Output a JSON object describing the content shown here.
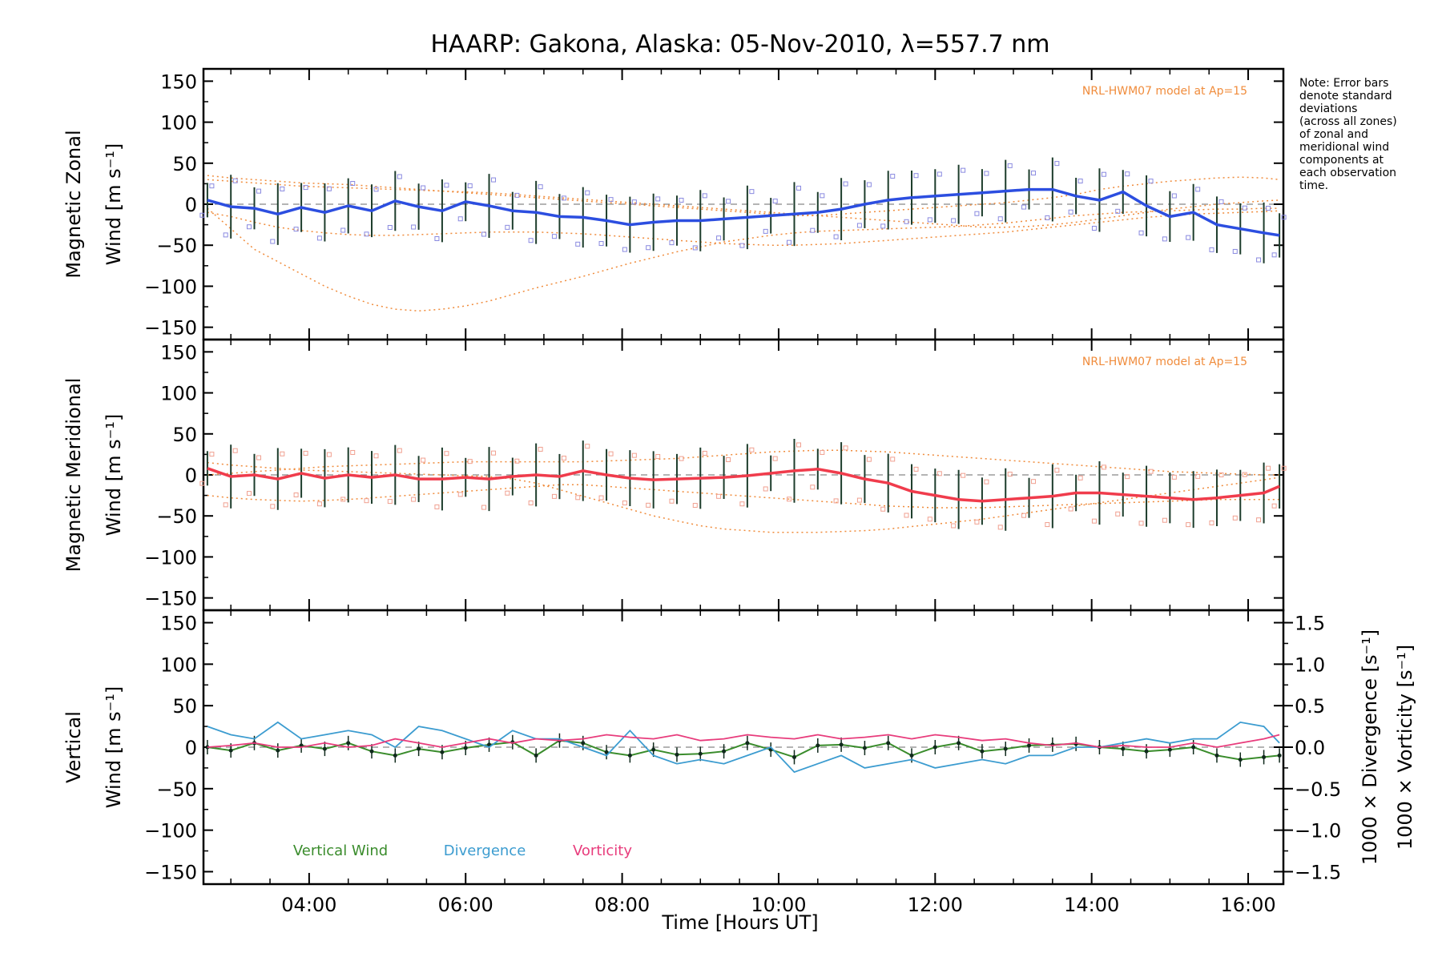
{
  "title": "HAARP: Gakona,  Alaska: 05-Nov-2010, λ=557.7 nm",
  "note": [
    "Note: Error bars",
    "denote standard",
    "deviations",
    "(across all zones)",
    "of zonal and",
    "meridional wind",
    "components at",
    "each observation",
    "time."
  ],
  "x_axis": {
    "label": "Time [Hours UT]",
    "ticks": [
      "04:00",
      "06:00",
      "08:00",
      "10:00",
      "12:00",
      "14:00",
      "16:00"
    ]
  },
  "y_ticks": [
    "150",
    "100",
    "50",
    "0",
    "−50",
    "−100",
    "−150"
  ],
  "right_ticks": [
    "1.5",
    "1.0",
    "0.5",
    "0.0",
    "−0.5",
    "−1.0",
    "−1.5"
  ],
  "panels": [
    {
      "ylabel_line1": "Magnetic Zonal",
      "ylabel_line2": "Wind [m s⁻¹]",
      "model_label": "NRL-HWM07 model at Ap=15"
    },
    {
      "ylabel_line1": "Magnetic Meridional",
      "ylabel_line2": "Wind [m s⁻¹]",
      "model_label": "NRL-HWM07 model at Ap=15"
    },
    {
      "ylabel_line1": "Vertical",
      "ylabel_line2": "Wind [m s⁻¹]",
      "right_label_1": "1000 × Divergence [s⁻¹]",
      "right_label_2": "1000 × Vorticity [s⁻¹]"
    }
  ],
  "legend": [
    "Vertical Wind",
    "Divergence",
    "Vorticity"
  ],
  "colors": {
    "zonal": "#2c4ee0",
    "meridional": "#f03c4c",
    "vertical": "#3a8c2c",
    "divergence": "#3c9cd0",
    "vorticity": "#e83c7c",
    "model": "#f08c3c",
    "axis": "#000000"
  },
  "chart_data": [
    {
      "type": "line",
      "title": "HAARP: Gakona,  Alaska: 05-Nov-2010, λ=557.7 nm",
      "xlabel": "Time [Hours UT]",
      "ylabel": "Magnetic Zonal Wind [m s⁻¹]",
      "xlim": [
        2.65,
        16.45
      ],
      "ylim": [
        -165,
        165
      ],
      "x": [
        2.7,
        3.0,
        3.3,
        3.6,
        3.9,
        4.2,
        4.5,
        4.8,
        5.1,
        5.4,
        5.7,
        6.0,
        6.3,
        6.6,
        6.9,
        7.2,
        7.5,
        7.8,
        8.1,
        8.4,
        8.7,
        9.0,
        9.3,
        9.6,
        9.9,
        10.2,
        10.5,
        10.8,
        11.1,
        11.4,
        11.7,
        12.0,
        12.3,
        12.6,
        12.9,
        13.2,
        13.5,
        13.8,
        14.1,
        14.4,
        14.7,
        15.0,
        15.3,
        15.6,
        15.9,
        16.2,
        16.4
      ],
      "series": [
        {
          "values": [
            5,
            -3,
            -5,
            -12,
            -4,
            -10,
            -2,
            -8,
            4,
            -3,
            -8,
            3,
            -2,
            -8,
            -10,
            -15,
            -16,
            -20,
            -25,
            -22,
            -20,
            -20,
            -18,
            -16,
            -14,
            -12,
            -10,
            -6,
            0,
            5,
            8,
            10,
            12,
            14,
            16,
            18,
            18,
            10,
            5,
            15,
            -2,
            -15,
            -10,
            -25,
            -30,
            -35,
            -38
          ]
        }
      ],
      "error_bar": {
        "half_width_typical": 30
      },
      "model_curves": [
        {
          "values": [
            35,
            32,
            30,
            28,
            26,
            25,
            24,
            22,
            20,
            18,
            16,
            14,
            12,
            10,
            8,
            6,
            4,
            2,
            0,
            -2,
            -4,
            -6,
            -8,
            -10,
            -12,
            -14,
            -14,
            -12,
            -10,
            -8,
            -6,
            -4,
            -2,
            0,
            2,
            5,
            8,
            12,
            18,
            22,
            25,
            28,
            30,
            32,
            33,
            32,
            30
          ]
        },
        {
          "values": [
            -5,
            -30,
            -55,
            -70,
            -85,
            -100,
            -112,
            -122,
            -128,
            -130,
            -128,
            -124,
            -118,
            -110,
            -102,
            -95,
            -88,
            -80,
            -72,
            -65,
            -58,
            -52,
            -46,
            -42,
            -38,
            -35,
            -33,
            -32,
            -31,
            -30,
            -29,
            -28,
            -27,
            -25,
            -23,
            -20,
            -17,
            -14,
            -12,
            -10,
            -9,
            -8,
            -7,
            -6,
            -6,
            -5,
            -5
          ]
        },
        {
          "values": [
            -10,
            -15,
            -22,
            -28,
            -32,
            -35,
            -37,
            -38,
            -38,
            -37,
            -36,
            -35,
            -34,
            -34,
            -34,
            -35,
            -36,
            -38,
            -40,
            -42,
            -44,
            -46,
            -48,
            -49,
            -50,
            -50,
            -49,
            -48,
            -46,
            -44,
            -42,
            -40,
            -38,
            -36,
            -34,
            -31,
            -28,
            -25,
            -22,
            -19,
            -16,
            -14,
            -12,
            -11,
            -10,
            -9,
            -8
          ]
        },
        {
          "values": [
            30,
            28,
            26,
            24,
            22,
            21,
            20,
            19,
            18,
            17,
            16,
            15,
            14,
            12,
            10,
            8,
            6,
            4,
            2,
            0,
            -2,
            -4,
            -6,
            -8,
            -10,
            -12,
            -14,
            -16,
            -18,
            -20,
            -22,
            -24,
            -26,
            -28,
            -28,
            -27,
            -25,
            -22,
            -18,
            -14,
            -10,
            -6,
            -3,
            0,
            2,
            4,
            5
          ]
        }
      ]
    },
    {
      "type": "line",
      "xlabel": "Time [Hours UT]",
      "ylabel": "Magnetic Meridional Wind [m s⁻¹]",
      "xlim": [
        2.65,
        16.45
      ],
      "ylim": [
        -165,
        165
      ],
      "x": [
        2.7,
        3.0,
        3.3,
        3.6,
        3.9,
        4.2,
        4.5,
        4.8,
        5.1,
        5.4,
        5.7,
        6.0,
        6.3,
        6.6,
        6.9,
        7.2,
        7.5,
        7.8,
        8.1,
        8.4,
        8.7,
        9.0,
        9.3,
        9.6,
        9.9,
        10.2,
        10.5,
        10.8,
        11.1,
        11.4,
        11.7,
        12.0,
        12.3,
        12.6,
        12.9,
        13.2,
        13.5,
        13.8,
        14.1,
        14.4,
        14.7,
        15.0,
        15.3,
        15.6,
        15.9,
        16.2,
        16.4
      ],
      "series": [
        {
          "values": [
            8,
            -2,
            0,
            -5,
            2,
            -4,
            0,
            -3,
            0,
            -5,
            -5,
            -3,
            -5,
            -2,
            0,
            -2,
            5,
            0,
            -4,
            -6,
            -5,
            -4,
            -3,
            -1,
            2,
            5,
            7,
            2,
            -5,
            -10,
            -20,
            -25,
            -30,
            -32,
            -30,
            -28,
            -26,
            -22,
            -22,
            -24,
            -26,
            -28,
            -30,
            -28,
            -25,
            -22,
            -14
          ]
        }
      ],
      "error_bar": {
        "half_width_typical": 30
      },
      "model_curves": [
        {
          "values": [
            15,
            12,
            10,
            8,
            6,
            5,
            4,
            3,
            2,
            1,
            0,
            -1,
            -2,
            -5,
            -10,
            -18,
            -26,
            -34,
            -42,
            -50,
            -56,
            -62,
            -66,
            -68,
            -70,
            -70,
            -70,
            -69,
            -68,
            -66,
            -63,
            -60,
            -57,
            -54,
            -50,
            -46,
            -42,
            -38,
            -34,
            -30,
            -26,
            -22,
            -18,
            -14,
            -10,
            -6,
            -3
          ]
        },
        {
          "values": [
            -25,
            -28,
            -30,
            -31,
            -32,
            -31,
            -30,
            -28,
            -26,
            -24,
            -22,
            -20,
            -18,
            -16,
            -14,
            -12,
            -12,
            -14,
            -16,
            -18,
            -20,
            -22,
            -24,
            -26,
            -28,
            -30,
            -32,
            -34,
            -36,
            -38,
            -39,
            -40,
            -40,
            -40,
            -39,
            -38,
            -37,
            -36,
            -35,
            -34,
            -33,
            -32,
            -31,
            -30,
            -30,
            -30,
            -30
          ]
        },
        {
          "values": [
            0,
            2,
            4,
            6,
            8,
            10,
            11,
            12,
            13,
            14,
            15,
            16,
            16,
            16,
            16,
            16,
            16,
            17,
            18,
            19,
            20,
            22,
            24,
            26,
            28,
            29,
            30,
            30,
            29,
            28,
            26,
            24,
            22,
            20,
            18,
            16,
            14,
            12,
            10,
            8,
            6,
            4,
            3,
            2,
            1,
            0,
            0
          ]
        }
      ]
    },
    {
      "type": "line",
      "xlabel": "Time [Hours UT]",
      "ylabel": "Vertical Wind [m s⁻¹]",
      "ylabel_right": "1000 × Divergence [s⁻¹] / 1000 × Vorticity [s⁻¹]",
      "xlim": [
        2.65,
        16.45
      ],
      "ylim": [
        -165,
        165
      ],
      "ylim_right": [
        -1.65,
        1.65
      ],
      "x": [
        2.7,
        3.0,
        3.3,
        3.6,
        3.9,
        4.2,
        4.5,
        4.8,
        5.1,
        5.4,
        5.7,
        6.0,
        6.3,
        6.6,
        6.9,
        7.2,
        7.5,
        7.8,
        8.1,
        8.4,
        8.7,
        9.0,
        9.3,
        9.6,
        9.9,
        10.2,
        10.5,
        10.8,
        11.1,
        11.4,
        11.7,
        12.0,
        12.3,
        12.6,
        12.9,
        13.2,
        13.5,
        13.8,
        14.1,
        14.4,
        14.7,
        15.0,
        15.3,
        15.6,
        15.9,
        16.2,
        16.4
      ],
      "series": [
        {
          "name": "Vertical Wind",
          "axis": "left",
          "values": [
            0,
            -4,
            5,
            -4,
            2,
            -2,
            5,
            -5,
            -10,
            -2,
            -6,
            -1,
            3,
            6,
            -10,
            8,
            5,
            -6,
            -10,
            -3,
            -9,
            -8,
            -5,
            5,
            -3,
            -12,
            2,
            3,
            -1,
            5,
            -10,
            0,
            5,
            -5,
            -2,
            2,
            3,
            4,
            0,
            -2,
            -5,
            -3,
            0,
            -10,
            -15,
            -12,
            -10
          ]
        },
        {
          "name": "Divergence",
          "axis": "right",
          "values": [
            0.25,
            0.15,
            0.1,
            0.3,
            0.1,
            0.15,
            0.2,
            0.15,
            0.0,
            0.25,
            0.2,
            0.1,
            0.0,
            0.2,
            0.1,
            0.1,
            0.0,
            -0.1,
            0.2,
            -0.1,
            -0.2,
            -0.15,
            -0.2,
            -0.1,
            0.0,
            -0.3,
            -0.2,
            -0.1,
            -0.25,
            -0.2,
            -0.15,
            -0.25,
            -0.2,
            -0.15,
            -0.2,
            -0.1,
            -0.1,
            0.0,
            0.0,
            0.05,
            0.1,
            0.05,
            0.1,
            0.1,
            0.3,
            0.25,
            0.05
          ]
        },
        {
          "name": "Vorticity",
          "axis": "right",
          "values": [
            0.0,
            0.02,
            0.05,
            0.0,
            0.0,
            0.05,
            0.0,
            0.02,
            0.1,
            0.05,
            0.0,
            0.05,
            0.1,
            0.05,
            0.1,
            0.08,
            0.1,
            0.15,
            0.12,
            0.1,
            0.15,
            0.08,
            0.1,
            0.15,
            0.12,
            0.1,
            0.15,
            0.1,
            0.12,
            0.15,
            0.1,
            0.15,
            0.12,
            0.08,
            0.1,
            0.05,
            0.02,
            0.05,
            0.0,
            0.02,
            0.0,
            0.0,
            0.05,
            0.0,
            0.05,
            0.1,
            0.15
          ]
        }
      ]
    }
  ]
}
